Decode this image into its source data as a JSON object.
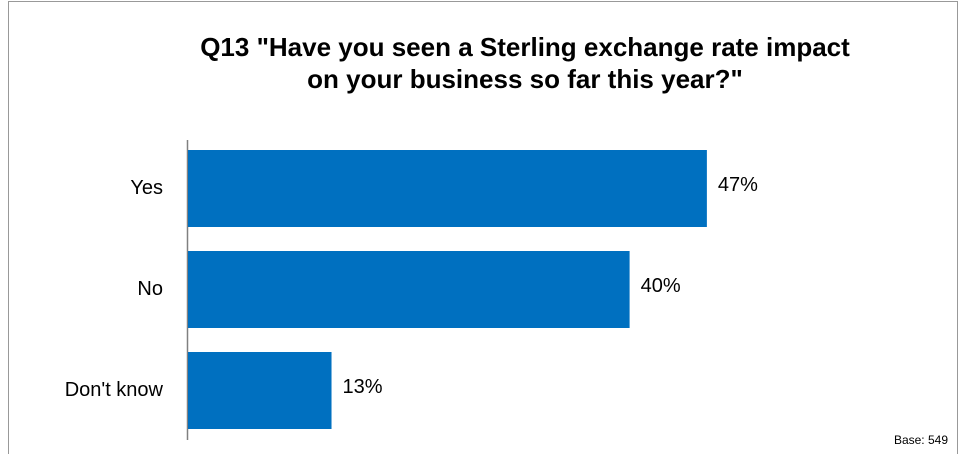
{
  "chart_data": {
    "type": "bar",
    "orientation": "horizontal",
    "title": "Q13 \"Have you seen a Sterling exchange rate impact\non your business so far this year?\"",
    "categories": [
      "Yes",
      "No",
      "Don't know"
    ],
    "values": [
      47,
      40,
      13
    ],
    "value_labels": [
      "47%",
      "40%",
      "13%"
    ],
    "color": "#0070c0",
    "annotation": "Base: 549"
  }
}
